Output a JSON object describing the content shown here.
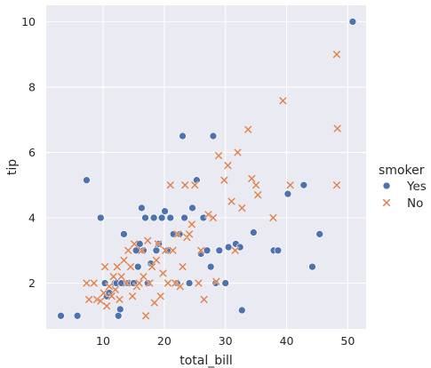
{
  "chart_data": {
    "type": "scatter",
    "title": "",
    "xlabel": "total_bill",
    "ylabel": "tip",
    "xlim": [
      0.7,
      53.0
    ],
    "ylim": [
      0.6,
      10.5
    ],
    "x_ticks": [
      10,
      20,
      30,
      40,
      50
    ],
    "y_ticks": [
      2,
      4,
      6,
      8,
      10
    ],
    "grid": true,
    "legend": {
      "title": "smoker",
      "placement": "right"
    },
    "series": [
      {
        "name": "Yes",
        "marker": "circle",
        "color": "#4c72b0",
        "points": [
          [
            3.1,
            1.0
          ],
          [
            5.8,
            1.0
          ],
          [
            7.3,
            5.15
          ],
          [
            9.6,
            4.0
          ],
          [
            10.3,
            2.0
          ],
          [
            10.6,
            1.6
          ],
          [
            11.0,
            1.7
          ],
          [
            11.9,
            2.0
          ],
          [
            12.2,
            2.0
          ],
          [
            12.5,
            1.0
          ],
          [
            12.8,
            1.2
          ],
          [
            13.0,
            2.0
          ],
          [
            13.4,
            3.5
          ],
          [
            14.0,
            2.0
          ],
          [
            14.5,
            2.0
          ],
          [
            15.0,
            2.0
          ],
          [
            15.4,
            3.0
          ],
          [
            15.7,
            2.5
          ],
          [
            16.0,
            3.2
          ],
          [
            16.3,
            4.3
          ],
          [
            16.6,
            3.0
          ],
          [
            16.9,
            4.0
          ],
          [
            17.3,
            2.0
          ],
          [
            17.8,
            2.6
          ],
          [
            18.3,
            4.0
          ],
          [
            18.7,
            3.0
          ],
          [
            19.1,
            3.2
          ],
          [
            19.6,
            4.0
          ],
          [
            20.1,
            4.2
          ],
          [
            20.5,
            3.0
          ],
          [
            21.0,
            4.0
          ],
          [
            21.5,
            3.5
          ],
          [
            22.1,
            2.0
          ],
          [
            22.5,
            3.5
          ],
          [
            23.0,
            6.5
          ],
          [
            23.3,
            4.0
          ],
          [
            24.1,
            2.0
          ],
          [
            24.6,
            4.3
          ],
          [
            25.3,
            5.15
          ],
          [
            26.0,
            2.9
          ],
          [
            26.4,
            4.0
          ],
          [
            27.0,
            3.0
          ],
          [
            27.6,
            2.5
          ],
          [
            28.0,
            6.5
          ],
          [
            28.4,
            2.0
          ],
          [
            29.0,
            3.0
          ],
          [
            30.0,
            2.0
          ],
          [
            30.5,
            3.1
          ],
          [
            31.7,
            3.2
          ],
          [
            32.4,
            3.1
          ],
          [
            32.7,
            1.17
          ],
          [
            34.6,
            3.55
          ],
          [
            37.9,
            3.0
          ],
          [
            38.6,
            3.0
          ],
          [
            40.2,
            4.73
          ],
          [
            42.8,
            5.0
          ],
          [
            44.2,
            2.5
          ],
          [
            45.4,
            3.5
          ],
          [
            50.8,
            10.0
          ]
        ]
      },
      {
        "name": "No",
        "marker": "x",
        "color": "#dd8452",
        "points": [
          [
            7.3,
            2.0
          ],
          [
            7.7,
            1.5
          ],
          [
            8.5,
            2.0
          ],
          [
            9.0,
            1.5
          ],
          [
            9.6,
            1.45
          ],
          [
            10.1,
            1.7
          ],
          [
            10.3,
            2.5
          ],
          [
            10.6,
            1.3
          ],
          [
            11.0,
            1.9
          ],
          [
            11.4,
            1.6
          ],
          [
            11.7,
            2.2
          ],
          [
            12.0,
            1.8
          ],
          [
            12.3,
            2.5
          ],
          [
            12.7,
            1.5
          ],
          [
            13.0,
            2.2
          ],
          [
            13.4,
            2.7
          ],
          [
            13.8,
            2.0
          ],
          [
            14.1,
            3.0
          ],
          [
            14.5,
            2.5
          ],
          [
            14.8,
            1.6
          ],
          [
            15.1,
            3.2
          ],
          [
            15.5,
            1.9
          ],
          [
            15.9,
            2.0
          ],
          [
            16.3,
            3.0
          ],
          [
            16.6,
            2.2
          ],
          [
            17.0,
            1.0
          ],
          [
            17.3,
            3.3
          ],
          [
            17.6,
            2.0
          ],
          [
            18.0,
            2.5
          ],
          [
            18.4,
            1.4
          ],
          [
            18.7,
            2.7
          ],
          [
            19.0,
            3.2
          ],
          [
            19.4,
            1.6
          ],
          [
            19.8,
            2.3
          ],
          [
            20.2,
            3.0
          ],
          [
            20.6,
            2.0
          ],
          [
            21.0,
            5.0
          ],
          [
            21.4,
            3.0
          ],
          [
            21.8,
            2.0
          ],
          [
            22.2,
            3.5
          ],
          [
            22.6,
            1.9
          ],
          [
            23.0,
            2.5
          ],
          [
            23.4,
            5.0
          ],
          [
            23.7,
            3.4
          ],
          [
            24.1,
            3.5
          ],
          [
            24.5,
            3.8
          ],
          [
            25.0,
            5.0
          ],
          [
            25.6,
            2.0
          ],
          [
            26.0,
            3.0
          ],
          [
            26.5,
            1.5
          ],
          [
            27.2,
            4.1
          ],
          [
            28.0,
            4.0
          ],
          [
            28.5,
            2.05
          ],
          [
            28.9,
            5.9
          ],
          [
            29.8,
            5.15
          ],
          [
            30.4,
            5.6
          ],
          [
            31.0,
            4.5
          ],
          [
            31.6,
            3.0
          ],
          [
            32.0,
            6.0
          ],
          [
            32.7,
            4.3
          ],
          [
            33.7,
            6.7
          ],
          [
            34.3,
            5.2
          ],
          [
            35.0,
            5.0
          ],
          [
            35.3,
            4.7
          ],
          [
            37.8,
            4.0
          ],
          [
            39.4,
            7.58
          ],
          [
            40.6,
            5.0
          ],
          [
            48.2,
            9.0
          ],
          [
            48.3,
            6.73
          ],
          [
            48.2,
            5.0
          ]
        ]
      }
    ]
  }
}
